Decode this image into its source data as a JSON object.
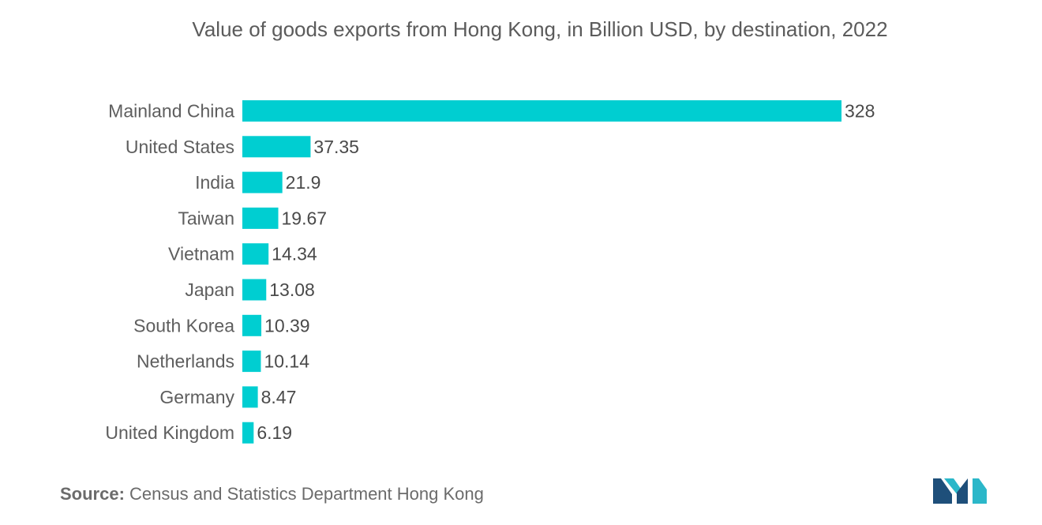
{
  "chart_data": {
    "type": "bar",
    "orientation": "horizontal",
    "title": "Value of goods exports from Hong Kong, in Billion USD, by destination, 2022",
    "categories": [
      "Mainland China",
      "United States",
      "India",
      "Taiwan",
      "Vietnam",
      "Japan",
      "South Korea",
      "Netherlands",
      "Germany",
      "United Kingdom"
    ],
    "values": [
      328,
      37.35,
      21.9,
      19.67,
      14.34,
      13.08,
      10.39,
      10.14,
      8.47,
      6.19
    ],
    "value_labels": [
      "328",
      "37.35",
      "21.9",
      "19.67",
      "14.34",
      "13.08",
      "10.39",
      "10.14",
      "8.47",
      "6.19"
    ],
    "xlabel": "",
    "ylabel": "",
    "xlim": [
      0,
      328
    ],
    "grid": false,
    "legend": "none",
    "bar_color": "#00CED1"
  },
  "source": {
    "label": "Source:",
    "text": "Census and Statistics Department Hong Kong"
  },
  "logo": {
    "icon": "mordor-logo-icon",
    "colors": [
      "#1E4F7A",
      "#2BB7C9"
    ]
  }
}
